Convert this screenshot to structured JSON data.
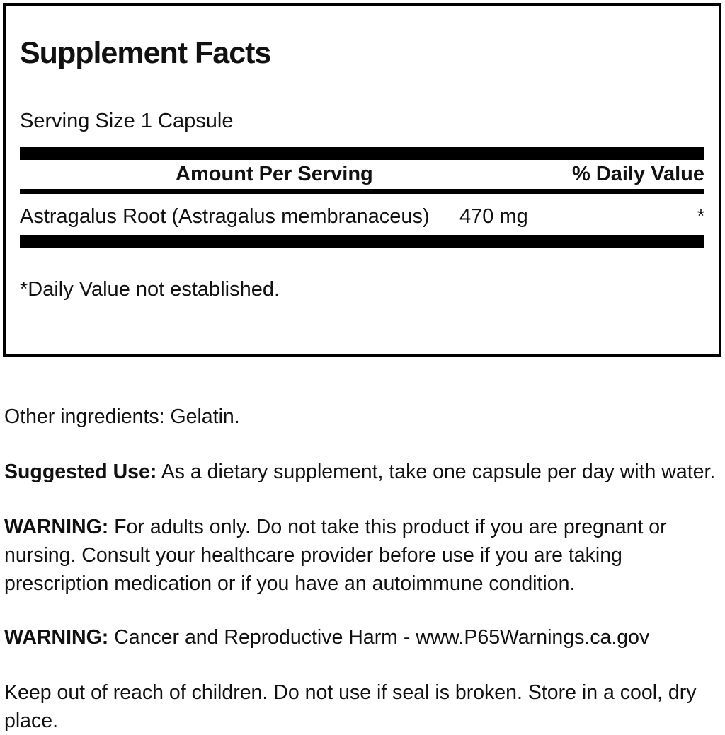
{
  "panel": {
    "title": "Supplement Facts",
    "serving_size": "Serving Size 1 Capsule",
    "header": {
      "amount": "Amount Per Serving",
      "daily_value": "% Daily Value"
    },
    "rows": [
      {
        "name": "Astragalus Root (Astragalus membranaceus)",
        "amount": "470 mg",
        "daily_value": "*"
      }
    ],
    "footnote": "*Daily Value not established."
  },
  "sections": {
    "other_ingredients": "Other ingredients: Gelatin.",
    "suggested_use_label": "Suggested Use:",
    "suggested_use_text": " As a dietary supplement, take one capsule per day with water.",
    "warning_adults_label": "WARNING:",
    "warning_adults_text": " For adults only. Do not take this product if you are pregnant or nursing. Consult your healthcare provider before use if you are taking prescription medication or if you have an autoimmune condition.",
    "warning_p65_label": "WARNING:",
    "warning_p65_text": " Cancer and Reproductive Harm - www.P65Warnings.ca.gov",
    "storage": "Keep out of reach of children. Do not use if seal is broken. Store in a cool, dry place."
  },
  "colors": {
    "text": "#111111",
    "bar": "#000000",
    "background": "#ffffff"
  }
}
